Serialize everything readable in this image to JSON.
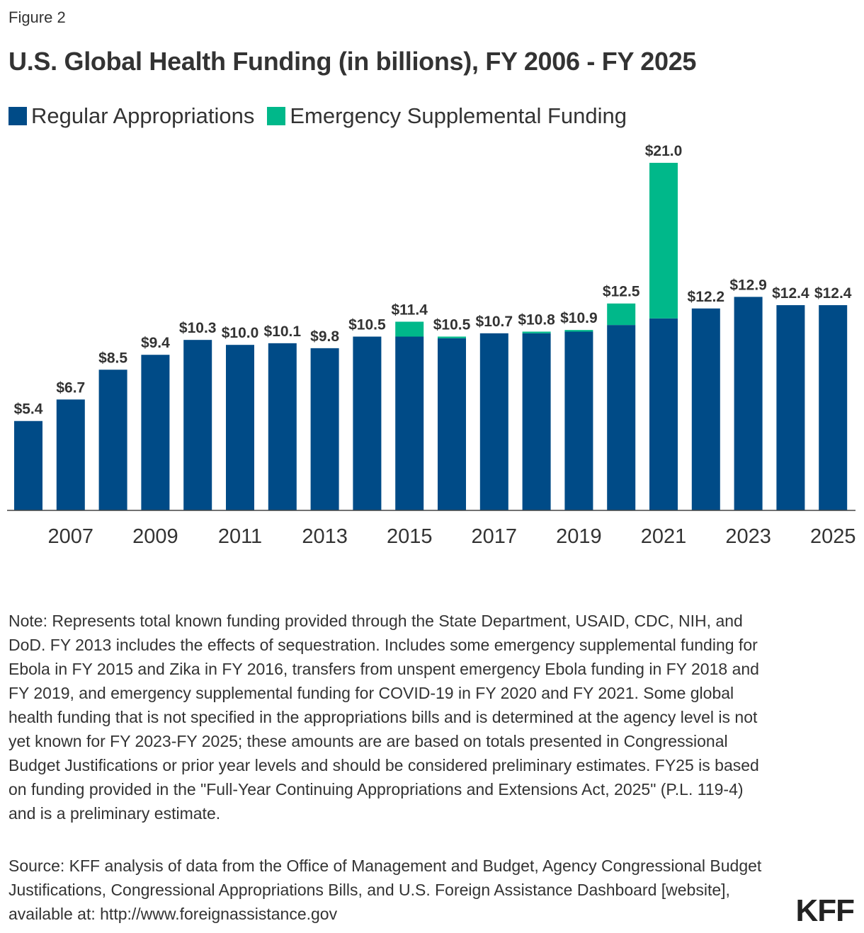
{
  "figure_label": "Figure 2",
  "chart_data": {
    "type": "bar",
    "stacked": true,
    "title": "U.S. Global Health Funding (in billions), FY 2006 - FY 2025",
    "categories": [
      "2006",
      "2007",
      "2008",
      "2009",
      "2010",
      "2011",
      "2012",
      "2013",
      "2014",
      "2015",
      "2016",
      "2017",
      "2018",
      "2019",
      "2020",
      "2021",
      "2022",
      "2023",
      "2024",
      "2025"
    ],
    "tick_labels": [
      "2007",
      "2009",
      "2011",
      "2013",
      "2015",
      "2017",
      "2019",
      "2021",
      "2023",
      "2025"
    ],
    "series": [
      {
        "name": "Regular Appropriations",
        "color": "#004b87",
        "values": [
          5.4,
          6.7,
          8.5,
          9.4,
          10.3,
          10.0,
          10.1,
          9.8,
          10.5,
          10.5,
          10.4,
          10.7,
          10.7,
          10.8,
          11.2,
          11.6,
          12.2,
          12.9,
          12.4,
          12.4
        ]
      },
      {
        "name": "Emergency Supplemental Funding",
        "color": "#00b88a",
        "values": [
          0,
          0,
          0,
          0,
          0,
          0,
          0,
          0,
          0,
          0.9,
          0.1,
          0,
          0.1,
          0.1,
          1.3,
          9.4,
          0,
          0,
          0,
          0
        ]
      }
    ],
    "data_labels": [
      "$5.4",
      "$6.7",
      "$8.5",
      "$9.4",
      "$10.3",
      "$10.0",
      "$10.1",
      "$9.8",
      "$10.5",
      "$11.4",
      "$10.5",
      "$10.7",
      "$10.8",
      "$10.9",
      "$12.5",
      "$21.0",
      "$12.2",
      "$12.9",
      "$12.4",
      "$12.4"
    ],
    "totals": [
      5.4,
      6.7,
      8.5,
      9.4,
      10.3,
      10.0,
      10.1,
      9.8,
      10.5,
      11.4,
      10.5,
      10.7,
      10.8,
      10.9,
      12.5,
      21.0,
      12.2,
      12.9,
      12.4,
      12.4
    ],
    "xlabel": "",
    "ylabel": "",
    "ylim": [
      0,
      21.0
    ],
    "grid": false,
    "legend_position": "top-left"
  },
  "note": "Note: Represents total known funding provided through the State Department, USAID, CDC, NIH, and DoD. FY 2013 includes the effects of sequestration. Includes some emergency supplemental funding for Ebola in FY 2015 and Zika in FY 2016, transfers from unspent emergency Ebola funding in FY 2018 and FY 2019, and emergency supplemental funding for COVID-19 in FY 2020 and FY 2021. Some global health funding that is not specified in the appropriations bills and is determined at the agency level is not yet known for FY 2023-FY 2025; these amounts are are based on totals presented in Congressional Budget Justifications or prior year levels and should be considered preliminary estimates. FY25 is based on funding provided in the \"Full-Year Continuing Appropriations and Extensions Act, 2025\" (P.L. 119-4) and is a preliminary estimate.",
  "source": "Source: KFF analysis of data from the Office of Management and Budget, Agency Congressional Budget Justifications, Congressional Appropriations Bills, and U.S. Foreign Assistance Dashboard [website], available at: http://www.foreignassistance.gov",
  "logo_text": "KFF"
}
